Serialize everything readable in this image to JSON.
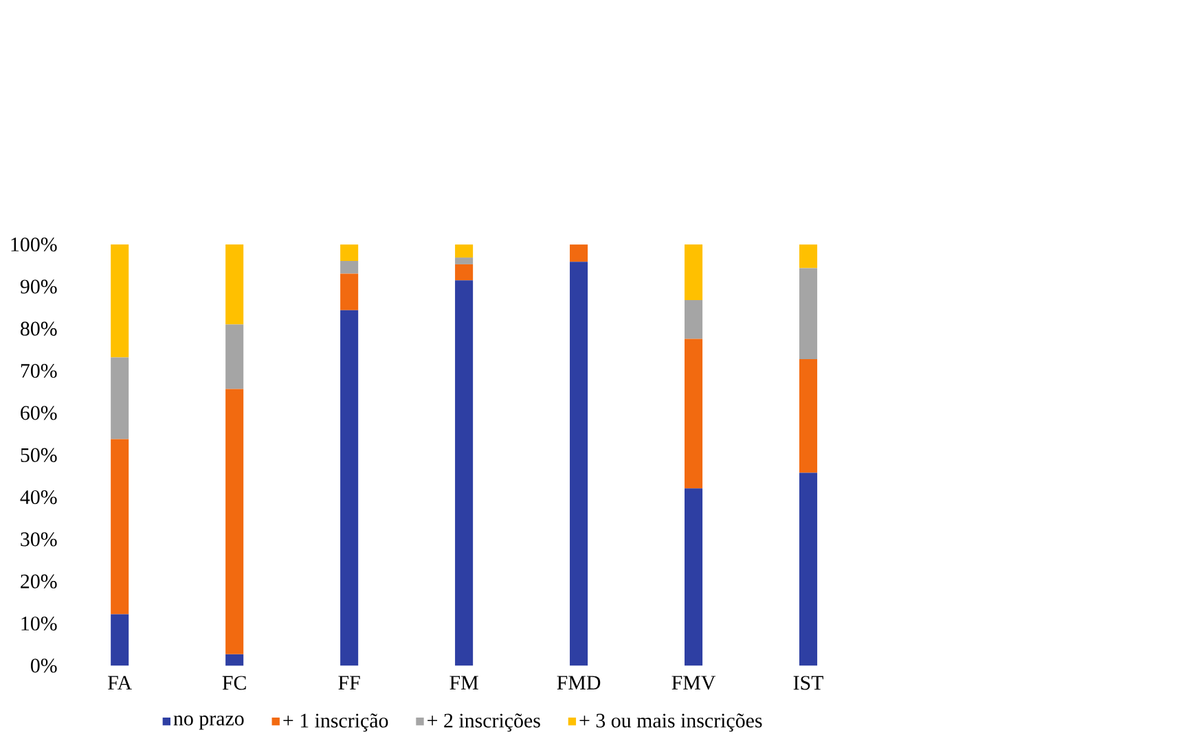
{
  "chart_data": {
    "type": "bar",
    "stacked": true,
    "legend": "bottom",
    "grid": false,
    "categories": [
      "FA",
      "FC",
      "FF",
      "FM",
      "FMD",
      "FMV",
      "IST"
    ],
    "ylim": [
      0,
      100
    ],
    "yticks": [
      {
        "value": 0,
        "label": "0%"
      },
      {
        "value": 10,
        "label": "10%"
      },
      {
        "value": 20,
        "label": "20%"
      },
      {
        "value": 30,
        "label": "30%"
      },
      {
        "value": 40,
        "label": "40%"
      },
      {
        "value": 50,
        "label": "50%"
      },
      {
        "value": 60,
        "label": "60%"
      },
      {
        "value": 70,
        "label": "70%"
      },
      {
        "value": 80,
        "label": "80%"
      },
      {
        "value": 90,
        "label": "90%"
      },
      {
        "value": 100,
        "label": "100%"
      }
    ],
    "series": [
      {
        "name": "no prazo",
        "color": "#2e3fa3",
        "values": [
          12.2,
          2.7,
          84.4,
          91.5,
          95.9,
          42.1,
          45.8
        ]
      },
      {
        "name": "+ 1 inscrição",
        "color": "#f26a10",
        "values": [
          41.6,
          63.0,
          8.7,
          3.8,
          4.1,
          35.5,
          27.0
        ]
      },
      {
        "name": "+ 2 inscrições",
        "color": "#a5a5a5",
        "values": [
          19.4,
          15.3,
          3.0,
          1.6,
          0,
          9.2,
          21.6
        ]
      },
      {
        "name": "+ 3 ou mais inscrições",
        "color": "#ffc000",
        "values": [
          26.8,
          19.0,
          3.9,
          3.1,
          0,
          13.2,
          5.6
        ]
      }
    ]
  }
}
